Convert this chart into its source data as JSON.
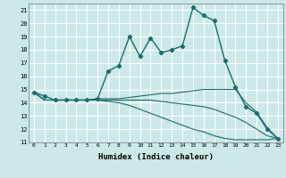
{
  "xlabel": "Humidex (Indice chaleur)",
  "background_color": "#cce8e8",
  "grid_color": "#ffffff",
  "line_color": "#1a6b6b",
  "xlim": [
    -0.5,
    23.5
  ],
  "ylim": [
    11,
    21.5
  ],
  "yticks": [
    11,
    12,
    13,
    14,
    15,
    16,
    17,
    18,
    19,
    20,
    21
  ],
  "xticks": [
    0,
    1,
    2,
    3,
    4,
    5,
    6,
    7,
    8,
    9,
    10,
    11,
    12,
    13,
    14,
    15,
    16,
    17,
    18,
    19,
    20,
    21,
    22,
    23
  ],
  "lines": [
    {
      "x": [
        0,
        1,
        2,
        3,
        4,
        5,
        6,
        7,
        8,
        9,
        10,
        11,
        12,
        13,
        14,
        15,
        16,
        17,
        18,
        19,
        20,
        21,
        22,
        23
      ],
      "y": [
        14.8,
        14.5,
        14.2,
        14.2,
        14.2,
        14.2,
        14.3,
        16.4,
        16.8,
        19.0,
        17.5,
        18.9,
        17.8,
        18.0,
        18.3,
        21.2,
        20.6,
        20.2,
        17.2,
        15.2,
        13.7,
        13.2,
        12.0,
        11.3
      ],
      "marker": "D",
      "markersize": 2.2,
      "linewidth": 1.0
    },
    {
      "x": [
        0,
        1,
        2,
        3,
        4,
        5,
        6,
        7,
        8,
        9,
        10,
        11,
        12,
        13,
        14,
        15,
        16,
        17,
        18,
        19,
        20,
        21,
        22,
        23
      ],
      "y": [
        14.8,
        14.2,
        14.2,
        14.2,
        14.2,
        14.2,
        14.3,
        14.3,
        14.3,
        14.4,
        14.5,
        14.6,
        14.7,
        14.7,
        14.8,
        14.9,
        15.0,
        15.0,
        15.0,
        15.0,
        14.0,
        13.3,
        12.1,
        11.3
      ],
      "marker": null,
      "linewidth": 0.8
    },
    {
      "x": [
        0,
        1,
        2,
        3,
        4,
        5,
        6,
        7,
        8,
        9,
        10,
        11,
        12,
        13,
        14,
        15,
        16,
        17,
        18,
        19,
        20,
        21,
        22,
        23
      ],
      "y": [
        14.8,
        14.2,
        14.2,
        14.2,
        14.2,
        14.2,
        14.2,
        14.2,
        14.2,
        14.2,
        14.2,
        14.2,
        14.1,
        14.0,
        13.9,
        13.8,
        13.7,
        13.5,
        13.2,
        12.9,
        12.5,
        12.0,
        11.5,
        11.3
      ],
      "marker": null,
      "linewidth": 0.8
    },
    {
      "x": [
        0,
        1,
        2,
        3,
        4,
        5,
        6,
        7,
        8,
        9,
        10,
        11,
        12,
        13,
        14,
        15,
        16,
        17,
        18,
        19,
        20,
        21,
        22,
        23
      ],
      "y": [
        14.8,
        14.2,
        14.2,
        14.2,
        14.2,
        14.2,
        14.2,
        14.1,
        14.0,
        13.8,
        13.5,
        13.2,
        12.9,
        12.6,
        12.3,
        12.0,
        11.8,
        11.5,
        11.3,
        11.2,
        11.2,
        11.2,
        11.2,
        11.3
      ],
      "marker": null,
      "linewidth": 0.8
    }
  ]
}
